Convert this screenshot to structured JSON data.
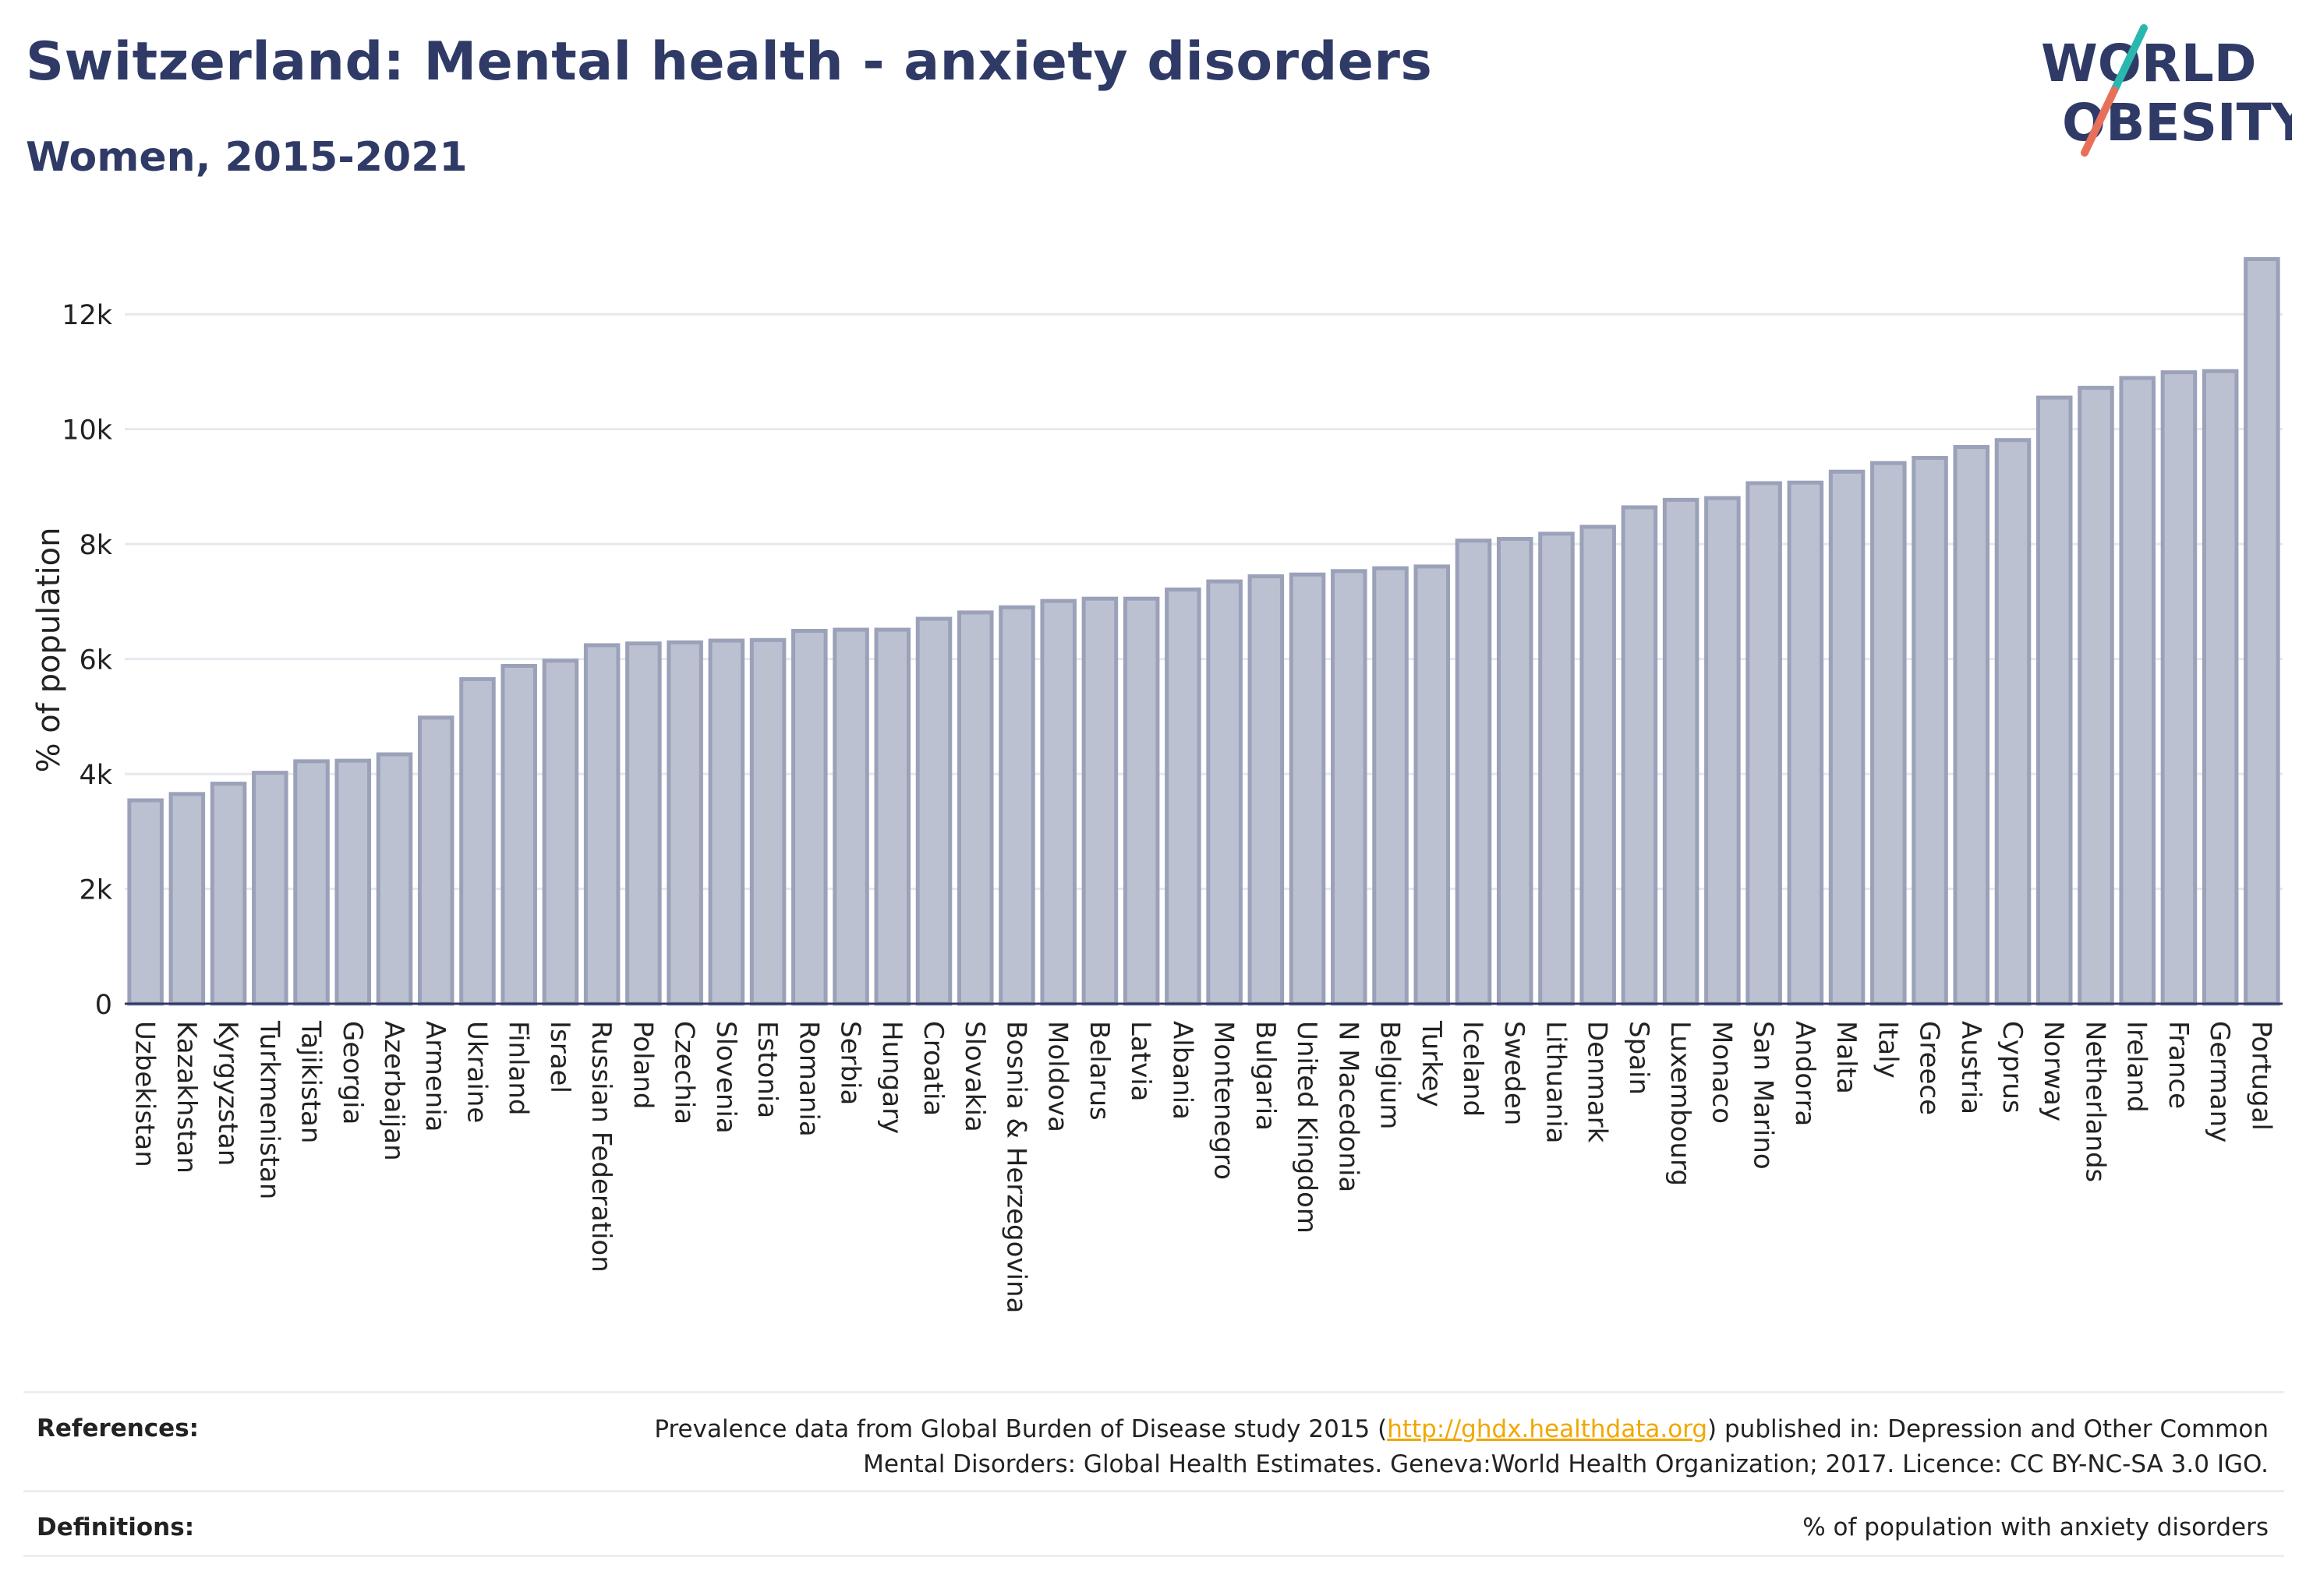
{
  "header": {
    "title": "Switzerland: Mental health - anxiety disorders",
    "subtitle": "Women, 2015-2021"
  },
  "logo": {
    "line1": "WORLD",
    "line2": "OBESITY",
    "colors": {
      "text": "#2f3a66",
      "slash_top": "#2ab7b0",
      "slash_bottom": "#e8705a"
    }
  },
  "chart_data": {
    "type": "bar",
    "ylabel": "% of population",
    "ylim": [
      0,
      13400
    ],
    "yticks": [
      0,
      2000,
      4000,
      6000,
      8000,
      10000,
      12000
    ],
    "ytick_labels": [
      "0",
      "2k",
      "4k",
      "6k",
      "8k",
      "10k",
      "12k"
    ],
    "grid": true,
    "bar_color": "#bcc1d1",
    "bar_edge_color": "#9aa1b9",
    "categories": [
      "Uzbekistan",
      "Kazakhstan",
      "Kyrgyzstan",
      "Turkmenistan",
      "Tajikistan",
      "Georgia",
      "Azerbaijan",
      "Armenia",
      "Ukraine",
      "Finland",
      "Israel",
      "Russian Federation",
      "Poland",
      "Czechia",
      "Slovenia",
      "Estonia",
      "Romania",
      "Serbia",
      "Hungary",
      "Croatia",
      "Slovakia",
      "Bosnia & Herzegovina",
      "Moldova",
      "Belarus",
      "Latvia",
      "Albania",
      "Montenegro",
      "Bulgaria",
      "United Kingdom",
      "N Macedonia",
      "Belgium",
      "Turkey",
      "Iceland",
      "Sweden",
      "Lithuania",
      "Denmark",
      "Spain",
      "Luxembourg",
      "Monaco",
      "San Marino",
      "Andorra",
      "Malta",
      "Italy",
      "Greece",
      "Austria",
      "Cyprus",
      "Norway",
      "Netherlands",
      "Ireland",
      "France",
      "Germany",
      "Portugal"
    ],
    "values": [
      3540,
      3650,
      3830,
      4020,
      4220,
      4230,
      4340,
      4980,
      5650,
      5880,
      5970,
      6240,
      6270,
      6290,
      6320,
      6330,
      6490,
      6510,
      6510,
      6700,
      6810,
      6900,
      7010,
      7050,
      7050,
      7210,
      7350,
      7440,
      7470,
      7530,
      7580,
      7610,
      8060,
      8090,
      8180,
      8300,
      8640,
      8770,
      8800,
      9060,
      9070,
      9260,
      9410,
      9500,
      9690,
      9810,
      10550,
      10720,
      10890,
      10990,
      11010,
      12960
    ]
  },
  "footer": {
    "references_label": "References:",
    "references_pre": "Prevalence data from Global Burden of Disease study 2015 (",
    "references_link": "http://ghdx.healthdata.org",
    "references_post": ") published in: Depression and Other Common",
    "references_line2": "Mental Disorders: Global Health Estimates. Geneva:World Health Organization; 2017. Licence: CC BY-NC-SA 3.0 IGO.",
    "definitions_label": "Definitions:",
    "definitions_text": "% of population with anxiety disorders"
  }
}
